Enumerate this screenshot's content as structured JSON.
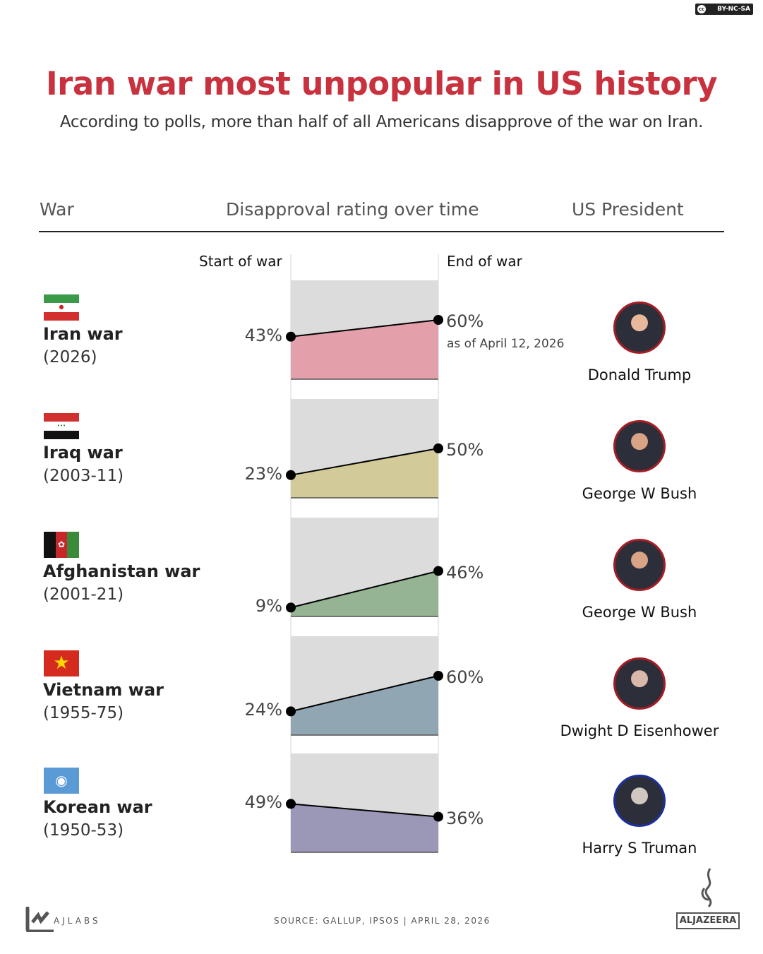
{
  "license_badge": "BY-NC-SA",
  "title": "Iran war most unpopular in US history",
  "subtitle": "According to polls, more than half of all Americans disapprove of the war on Iran.",
  "headers": {
    "war": "War",
    "rating": "Disapproval rating over time",
    "president": "US President"
  },
  "chart_data": {
    "type": "area",
    "x": [
      "Start of war",
      "End of war"
    ],
    "ylim": [
      0,
      100
    ],
    "unit": "%",
    "series": [
      {
        "name": "Iran war",
        "years": "(2026)",
        "values": [
          43,
          60
        ],
        "labels": [
          "43%",
          "60%"
        ],
        "note": "as of April 12, 2026",
        "color": "#e3a0aa",
        "president": "Donald Trump",
        "flag": "iran"
      },
      {
        "name": "Iraq war",
        "years": "(2003-11)",
        "values": [
          23,
          50
        ],
        "labels": [
          "23%",
          "50%"
        ],
        "color": "#d2ca98",
        "president": "George W Bush",
        "flag": "iraq"
      },
      {
        "name": "Afghanistan war",
        "years": "(2001-21)",
        "values": [
          9,
          46
        ],
        "labels": [
          "9%",
          "46%"
        ],
        "color": "#94b494",
        "president": "George W Bush",
        "flag": "afghanistan"
      },
      {
        "name": "Vietnam war",
        "years": "(1955-75)",
        "values": [
          24,
          60
        ],
        "labels": [
          "24%",
          "60%"
        ],
        "color": "#91a6b3",
        "president": "Dwight D Eisenhower",
        "flag": "vietnam"
      },
      {
        "name": "Korean war",
        "years": "(1950-53)",
        "values": [
          49,
          36
        ],
        "labels": [
          "49%",
          "36%"
        ],
        "color": "#9a97b7",
        "president": "Harry S Truman",
        "flag": "un"
      }
    ]
  },
  "footer": {
    "source": "SOURCE:  GALLUP, IPSOS  |  APRIL 28, 2026",
    "ajlabs": "AJLABS",
    "aljazeera": "ALJAZEERA"
  },
  "colors": {
    "title": "#c8323f",
    "panel_bg": "#dcdcdc",
    "republican_ring": "#a51d25",
    "democrat_ring": "#1f2f9a"
  }
}
